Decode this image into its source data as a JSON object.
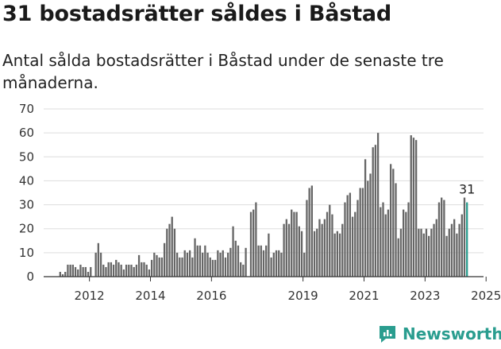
{
  "header": {
    "title": "31 bostadsrätter såldes i Båstad",
    "subtitle": "Antal sålda bostadsrätter i Båstad under de senaste tre månaderna."
  },
  "brand": {
    "name": "Newsworthy",
    "icon": "newsworthy-logo-icon",
    "color": "#2a9d8f"
  },
  "chart_data": {
    "type": "bar",
    "ylim": [
      0,
      70
    ],
    "yticks": [
      0,
      10,
      20,
      30,
      40,
      50,
      60,
      70
    ],
    "x_start": "2011-01",
    "x_end": "2025-06",
    "xticks": [
      {
        "label": "2012",
        "date": "2012-07"
      },
      {
        "label": "2014",
        "date": "2014-07"
      },
      {
        "label": "2016",
        "date": "2016-07"
      },
      {
        "label": "2019",
        "date": "2019-07"
      },
      {
        "label": "2021",
        "date": "2021-07"
      },
      {
        "label": "2023",
        "date": "2023-07"
      },
      {
        "label": "2025",
        "date": "2025-07"
      }
    ],
    "bar_color": "#666666",
    "highlight_color": "#2a9d8f",
    "grid": true,
    "series": [
      {
        "values": [
          {
            "x": "2011-07",
            "y": 2
          },
          {
            "x": "2011-08",
            "y": 1
          },
          {
            "x": "2011-09",
            "y": 2
          },
          {
            "x": "2011-10",
            "y": 5
          },
          {
            "x": "2011-11",
            "y": 5
          },
          {
            "x": "2011-12",
            "y": 5
          },
          {
            "x": "2012-01",
            "y": 4
          },
          {
            "x": "2012-02",
            "y": 3
          },
          {
            "x": "2012-03",
            "y": 5
          },
          {
            "x": "2012-04",
            "y": 4
          },
          {
            "x": "2012-05",
            "y": 4
          },
          {
            "x": "2012-06",
            "y": 2
          },
          {
            "x": "2012-07",
            "y": 4
          },
          {
            "x": "2012-09",
            "y": 10
          },
          {
            "x": "2012-10",
            "y": 14
          },
          {
            "x": "2012-11",
            "y": 10
          },
          {
            "x": "2012-12",
            "y": 5
          },
          {
            "x": "2013-01",
            "y": 4
          },
          {
            "x": "2013-02",
            "y": 6
          },
          {
            "x": "2013-03",
            "y": 6
          },
          {
            "x": "2013-04",
            "y": 5
          },
          {
            "x": "2013-05",
            "y": 7
          },
          {
            "x": "2013-06",
            "y": 6
          },
          {
            "x": "2013-07",
            "y": 5
          },
          {
            "x": "2013-08",
            "y": 3
          },
          {
            "x": "2013-09",
            "y": 5
          },
          {
            "x": "2013-10",
            "y": 5
          },
          {
            "x": "2013-11",
            "y": 5
          },
          {
            "x": "2013-12",
            "y": 4
          },
          {
            "x": "2014-01",
            "y": 5
          },
          {
            "x": "2014-02",
            "y": 9
          },
          {
            "x": "2014-03",
            "y": 6
          },
          {
            "x": "2014-04",
            "y": 6
          },
          {
            "x": "2014-05",
            "y": 5
          },
          {
            "x": "2014-06",
            "y": 3
          },
          {
            "x": "2014-07",
            "y": 7
          },
          {
            "x": "2014-08",
            "y": 10
          },
          {
            "x": "2014-09",
            "y": 9
          },
          {
            "x": "2014-10",
            "y": 8
          },
          {
            "x": "2014-11",
            "y": 8
          },
          {
            "x": "2014-12",
            "y": 14
          },
          {
            "x": "2015-01",
            "y": 20
          },
          {
            "x": "2015-02",
            "y": 22
          },
          {
            "x": "2015-03",
            "y": 25
          },
          {
            "x": "2015-04",
            "y": 20
          },
          {
            "x": "2015-05",
            "y": 10
          },
          {
            "x": "2015-06",
            "y": 8
          },
          {
            "x": "2015-07",
            "y": 8
          },
          {
            "x": "2015-08",
            "y": 11
          },
          {
            "x": "2015-09",
            "y": 10
          },
          {
            "x": "2015-10",
            "y": 11
          },
          {
            "x": "2015-11",
            "y": 8
          },
          {
            "x": "2015-12",
            "y": 16
          },
          {
            "x": "2016-01",
            "y": 13
          },
          {
            "x": "2016-02",
            "y": 13
          },
          {
            "x": "2016-03",
            "y": 10
          },
          {
            "x": "2016-04",
            "y": 13
          },
          {
            "x": "2016-05",
            "y": 10
          },
          {
            "x": "2016-06",
            "y": 8
          },
          {
            "x": "2016-07",
            "y": 7
          },
          {
            "x": "2016-08",
            "y": 7
          },
          {
            "x": "2016-09",
            "y": 11
          },
          {
            "x": "2016-10",
            "y": 10
          },
          {
            "x": "2016-11",
            "y": 11
          },
          {
            "x": "2016-12",
            "y": 8
          },
          {
            "x": "2017-01",
            "y": 10
          },
          {
            "x": "2017-02",
            "y": 12
          },
          {
            "x": "2017-03",
            "y": 21
          },
          {
            "x": "2017-04",
            "y": 15
          },
          {
            "x": "2017-05",
            "y": 13
          },
          {
            "x": "2017-06",
            "y": 6
          },
          {
            "x": "2017-07",
            "y": 5
          },
          {
            "x": "2017-08",
            "y": 12
          },
          {
            "x": "2017-10",
            "y": 27
          },
          {
            "x": "2017-11",
            "y": 28
          },
          {
            "x": "2017-12",
            "y": 31
          },
          {
            "x": "2018-01",
            "y": 13
          },
          {
            "x": "2018-02",
            "y": 13
          },
          {
            "x": "2018-03",
            "y": 11
          },
          {
            "x": "2018-04",
            "y": 13
          },
          {
            "x": "2018-05",
            "y": 18
          },
          {
            "x": "2018-06",
            "y": 8
          },
          {
            "x": "2018-07",
            "y": 10
          },
          {
            "x": "2018-08",
            "y": 11
          },
          {
            "x": "2018-09",
            "y": 11
          },
          {
            "x": "2018-10",
            "y": 10
          },
          {
            "x": "2018-11",
            "y": 22
          },
          {
            "x": "2018-12",
            "y": 24
          },
          {
            "x": "2019-01",
            "y": 22
          },
          {
            "x": "2019-02",
            "y": 28
          },
          {
            "x": "2019-03",
            "y": 27
          },
          {
            "x": "2019-04",
            "y": 27
          },
          {
            "x": "2019-05",
            "y": 21
          },
          {
            "x": "2019-06",
            "y": 19
          },
          {
            "x": "2019-07",
            "y": 10
          },
          {
            "x": "2019-08",
            "y": 32
          },
          {
            "x": "2019-09",
            "y": 37
          },
          {
            "x": "2019-10",
            "y": 38
          },
          {
            "x": "2019-11",
            "y": 19
          },
          {
            "x": "2019-12",
            "y": 20
          },
          {
            "x": "2020-01",
            "y": 24
          },
          {
            "x": "2020-02",
            "y": 22
          },
          {
            "x": "2020-03",
            "y": 24
          },
          {
            "x": "2020-04",
            "y": 27
          },
          {
            "x": "2020-05",
            "y": 30
          },
          {
            "x": "2020-06",
            "y": 26
          },
          {
            "x": "2020-07",
            "y": 18
          },
          {
            "x": "2020-08",
            "y": 19
          },
          {
            "x": "2020-09",
            "y": 18
          },
          {
            "x": "2020-10",
            "y": 22
          },
          {
            "x": "2020-11",
            "y": 31
          },
          {
            "x": "2020-12",
            "y": 34
          },
          {
            "x": "2021-01",
            "y": 35
          },
          {
            "x": "2021-02",
            "y": 25
          },
          {
            "x": "2021-03",
            "y": 27
          },
          {
            "x": "2021-04",
            "y": 32
          },
          {
            "x": "2021-05",
            "y": 37
          },
          {
            "x": "2021-06",
            "y": 37
          },
          {
            "x": "2021-07",
            "y": 49
          },
          {
            "x": "2021-08",
            "y": 40
          },
          {
            "x": "2021-09",
            "y": 43
          },
          {
            "x": "2021-10",
            "y": 54
          },
          {
            "x": "2021-11",
            "y": 55
          },
          {
            "x": "2021-12",
            "y": 60
          },
          {
            "x": "2022-01",
            "y": 29
          },
          {
            "x": "2022-02",
            "y": 31
          },
          {
            "x": "2022-03",
            "y": 26
          },
          {
            "x": "2022-04",
            "y": 28
          },
          {
            "x": "2022-05",
            "y": 47
          },
          {
            "x": "2022-06",
            "y": 45
          },
          {
            "x": "2022-07",
            "y": 39
          },
          {
            "x": "2022-08",
            "y": 16
          },
          {
            "x": "2022-09",
            "y": 20
          },
          {
            "x": "2022-10",
            "y": 28
          },
          {
            "x": "2022-11",
            "y": 27
          },
          {
            "x": "2022-12",
            "y": 31
          },
          {
            "x": "2023-01",
            "y": 59
          },
          {
            "x": "2023-02",
            "y": 58
          },
          {
            "x": "2023-03",
            "y": 57
          },
          {
            "x": "2023-04",
            "y": 20
          },
          {
            "x": "2023-05",
            "y": 20
          },
          {
            "x": "2023-06",
            "y": 18
          },
          {
            "x": "2023-07",
            "y": 20
          },
          {
            "x": "2023-08",
            "y": 17
          },
          {
            "x": "2023-09",
            "y": 20
          },
          {
            "x": "2023-10",
            "y": 22
          },
          {
            "x": "2023-11",
            "y": 24
          },
          {
            "x": "2023-12",
            "y": 31
          },
          {
            "x": "2024-01",
            "y": 33
          },
          {
            "x": "2024-02",
            "y": 32
          },
          {
            "x": "2024-03",
            "y": 17
          },
          {
            "x": "2024-04",
            "y": 20
          },
          {
            "x": "2024-05",
            "y": 22
          },
          {
            "x": "2024-06",
            "y": 24
          },
          {
            "x": "2024-07",
            "y": 18
          },
          {
            "x": "2024-08",
            "y": 22
          },
          {
            "x": "2024-09",
            "y": 26
          },
          {
            "x": "2024-10",
            "y": 33
          },
          {
            "x": "2024-11",
            "y": 31
          }
        ]
      }
    ],
    "highlight": {
      "x": "2024-11",
      "label": "31"
    }
  }
}
